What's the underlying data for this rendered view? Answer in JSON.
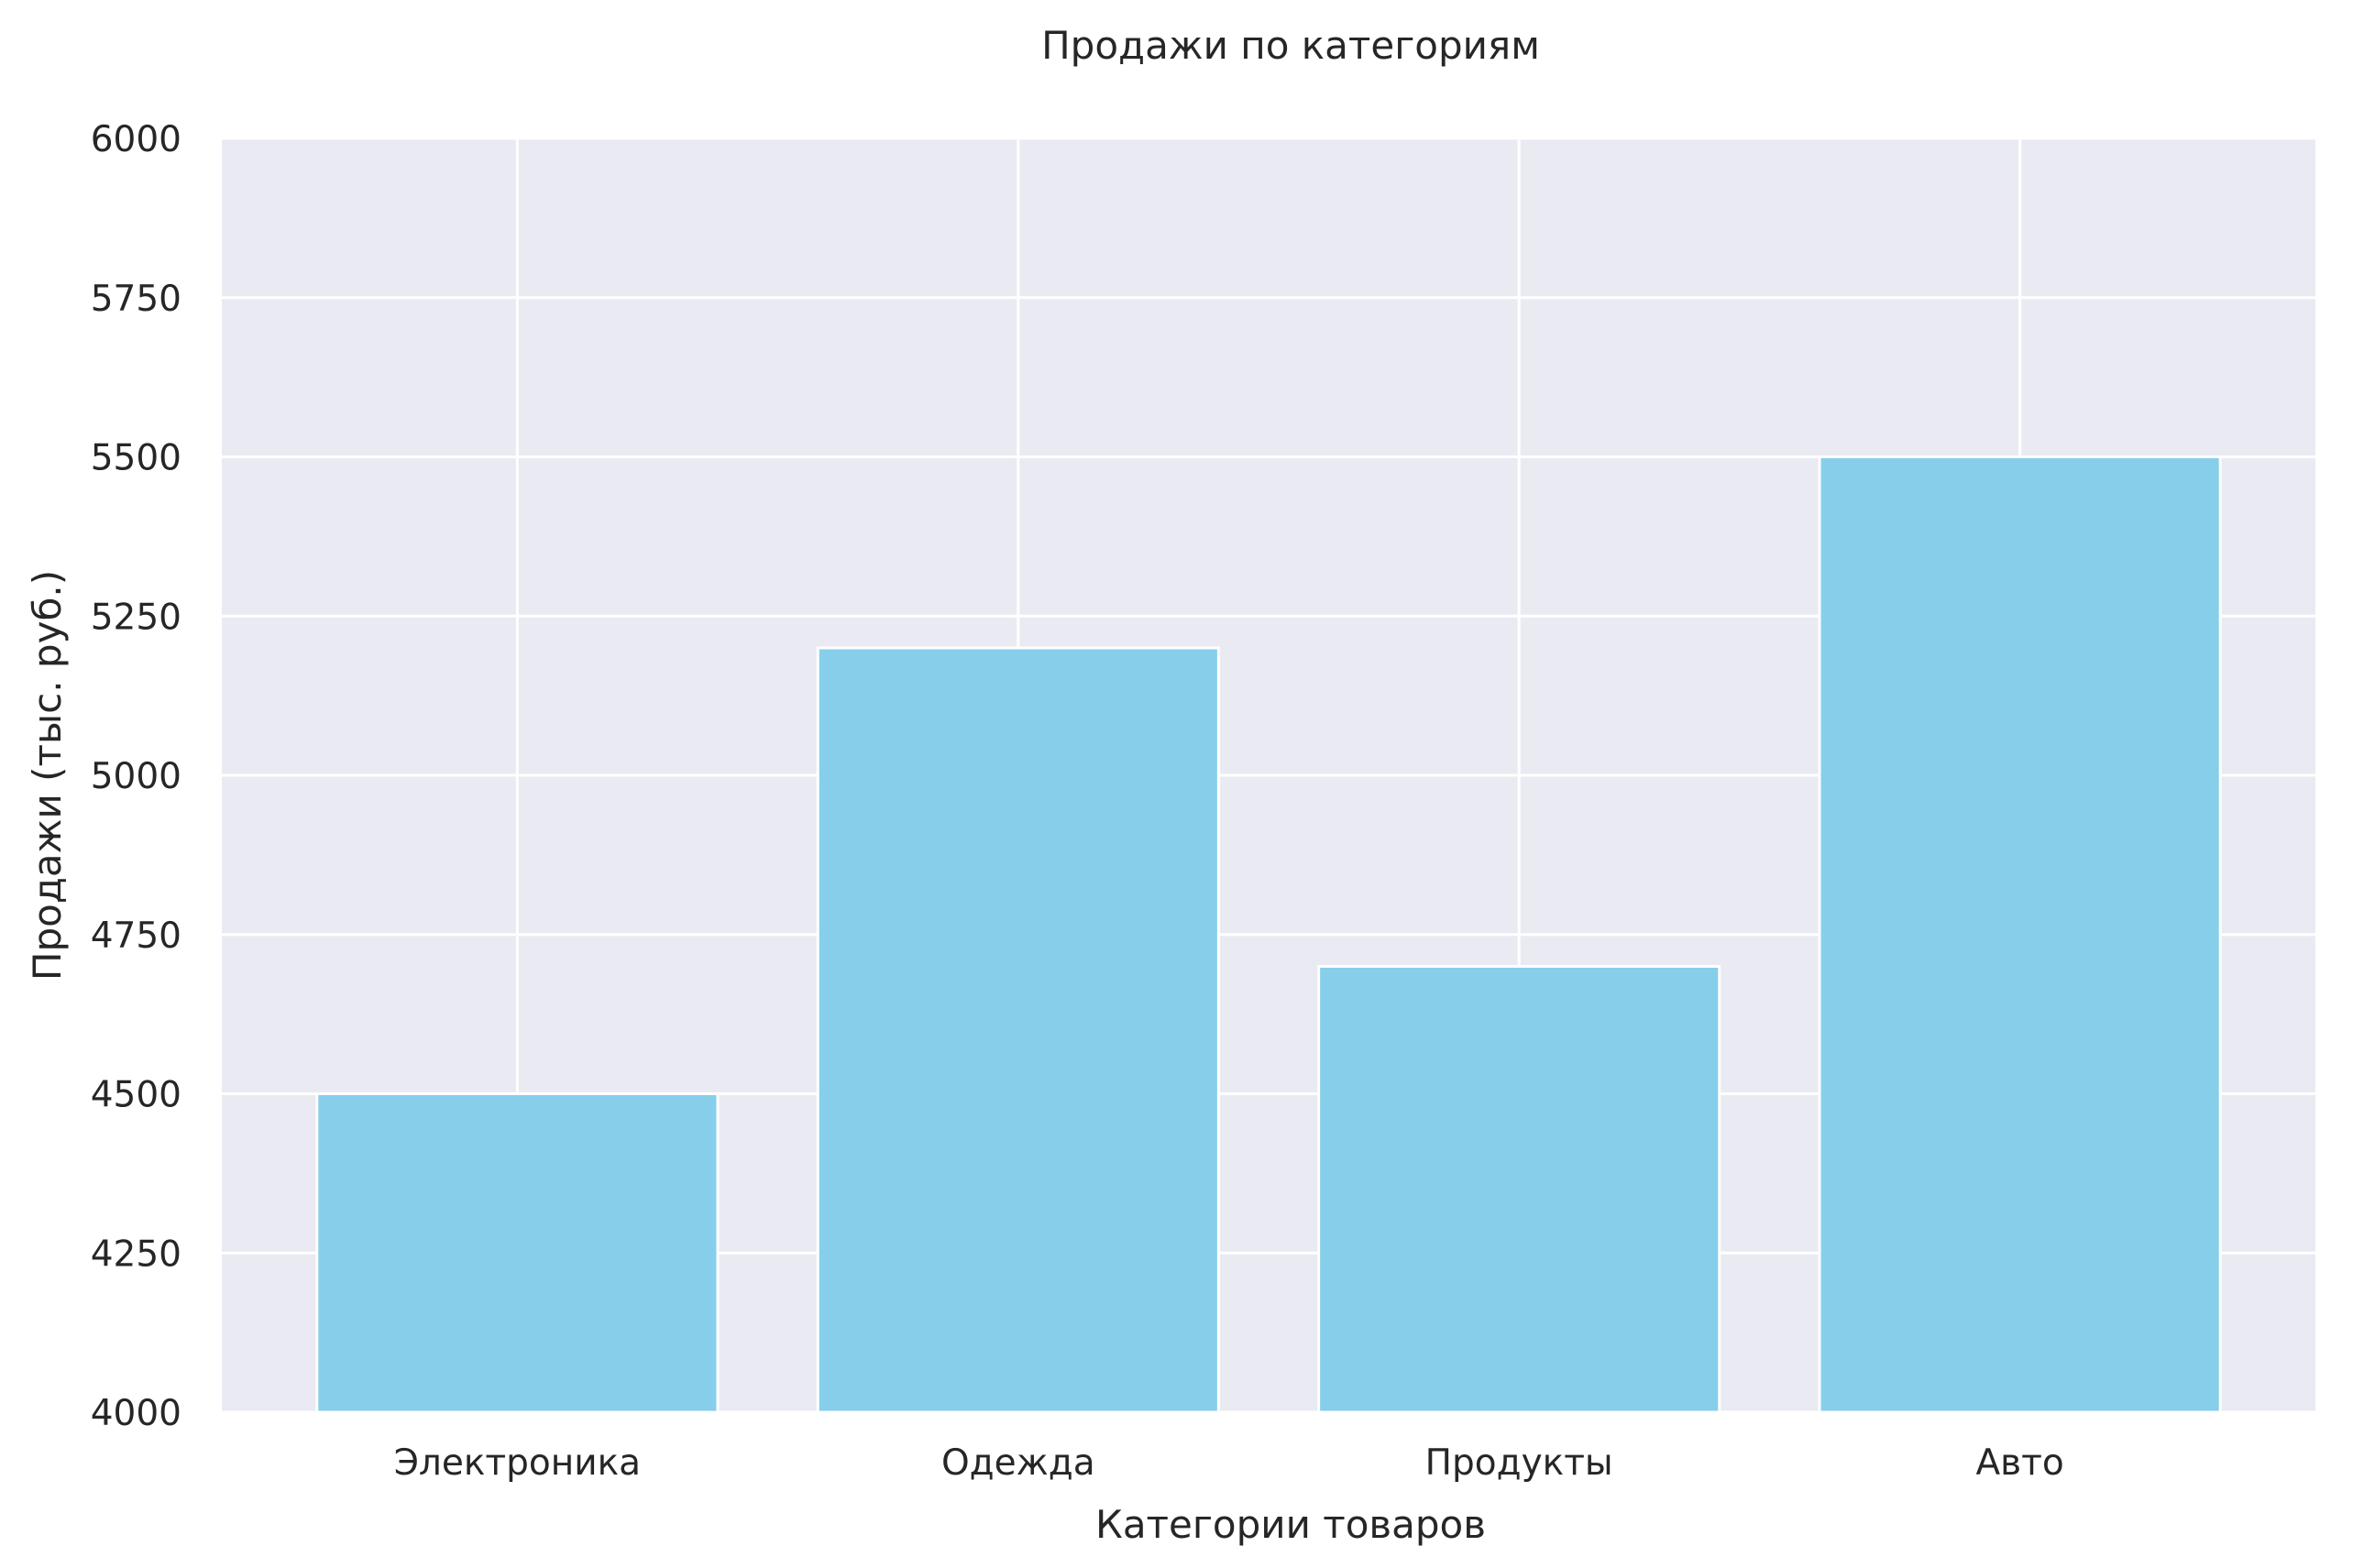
{
  "chart_data": {
    "type": "bar",
    "title": "Продажи по категориям",
    "xlabel": "Категории товаров",
    "ylabel": "Продажи (тыс. руб.)",
    "categories": [
      "Электроника",
      "Одежда",
      "Продукты",
      "Авто"
    ],
    "values": [
      4500,
      5200,
      4700,
      5500
    ],
    "ylim": [
      4000,
      6000
    ],
    "yticks": [
      4000,
      4250,
      4500,
      4750,
      5000,
      5250,
      5500,
      5750,
      6000
    ],
    "grid": true,
    "colors": {
      "bar": "#87ceeb",
      "plot_background": "#eaeaf2",
      "grid": "#ffffff",
      "text": "#262626"
    }
  }
}
